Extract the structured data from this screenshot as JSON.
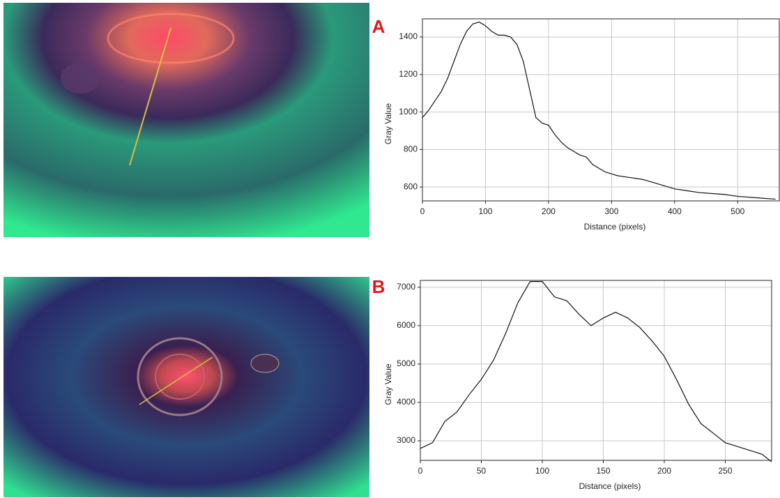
{
  "panel_labels": [
    "A",
    "B"
  ],
  "chart_data": [
    {
      "type": "line",
      "x_label": "Distance (pixels)",
      "y_label": "Gray Value",
      "xlim": [
        0,
        566
      ],
      "ylim": [
        526,
        1497
      ],
      "xticks": [
        0,
        100,
        200,
        300,
        400,
        500
      ],
      "yticks": [
        600,
        800,
        1000,
        1200,
        1400
      ],
      "grid": true,
      "x": [
        0,
        10,
        20,
        30,
        40,
        50,
        60,
        70,
        80,
        90,
        100,
        110,
        120,
        130,
        140,
        150,
        160,
        170,
        180,
        190,
        200,
        210,
        220,
        230,
        240,
        250,
        260,
        270,
        280,
        290,
        300,
        310,
        320,
        330,
        340,
        350,
        360,
        370,
        380,
        390,
        400,
        420,
        440,
        460,
        480,
        500,
        520,
        540,
        560
      ],
      "series": [
        {
          "color": "#111111",
          "values": [
            970,
            1010,
            1060,
            1110,
            1180,
            1270,
            1360,
            1430,
            1470,
            1480,
            1460,
            1430,
            1410,
            1410,
            1400,
            1360,
            1270,
            1120,
            970,
            940,
            930,
            880,
            840,
            810,
            790,
            770,
            760,
            720,
            700,
            680,
            670,
            660,
            655,
            650,
            645,
            640,
            630,
            620,
            610,
            600,
            590,
            580,
            570,
            565,
            560,
            550,
            545,
            540,
            535
          ]
        }
      ]
    },
    {
      "type": "line",
      "x_label": "Distance (pixels)",
      "y_label": "Gray Value",
      "xlim": [
        0,
        288
      ],
      "ylim": [
        2490,
        7180
      ],
      "xticks": [
        0,
        50,
        100,
        150,
        200,
        250
      ],
      "yticks": [
        3000,
        4000,
        5000,
        6000,
        7000
      ],
      "grid": true,
      "x": [
        0,
        10,
        20,
        30,
        40,
        50,
        60,
        70,
        80,
        90,
        100,
        110,
        120,
        130,
        140,
        150,
        160,
        170,
        180,
        190,
        200,
        210,
        220,
        230,
        240,
        250,
        260,
        270,
        280,
        288
      ],
      "series": [
        {
          "color": "#111111",
          "values": [
            2800,
            2950,
            3500,
            3750,
            4200,
            4600,
            5100,
            5800,
            6600,
            7150,
            7150,
            6750,
            6650,
            6300,
            6000,
            6200,
            6350,
            6200,
            5950,
            5600,
            5200,
            4600,
            3950,
            3450,
            3200,
            2950,
            2850,
            2750,
            2650,
            2450
          ]
        }
      ]
    }
  ]
}
